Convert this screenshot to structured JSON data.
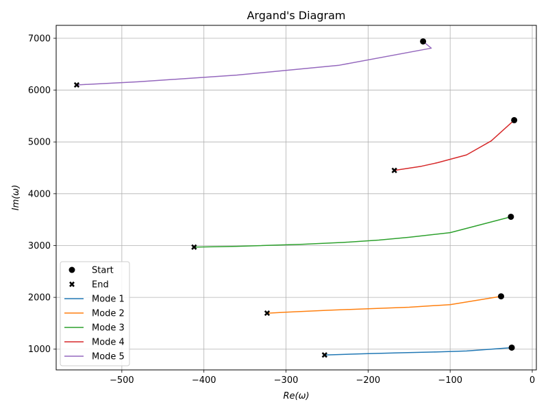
{
  "chart_data": {
    "type": "line",
    "title": "Argand's Diagram",
    "xlabel": "Re(ω)",
    "ylabel": "Im(ω)",
    "xlim": [
      -580,
      5
    ],
    "ylim": [
      600,
      7250
    ],
    "x_ticks": [
      -500,
      -400,
      -300,
      -200,
      -100,
      0
    ],
    "y_ticks": [
      1000,
      2000,
      3000,
      4000,
      5000,
      6000,
      7000
    ],
    "grid": true,
    "legend_location": "lower-left",
    "legend": [
      "Start",
      "End",
      "Mode 1",
      "Mode 2",
      "Mode 3",
      "Mode 4",
      "Mode 5"
    ],
    "colors": {
      "mode1": "#1f77b4",
      "mode2": "#ff7f0e",
      "mode3": "#2ca02c",
      "mode4": "#d62728",
      "mode5": "#9467bd",
      "grid": "#b0b0b0",
      "marker": "#000000"
    },
    "series": [
      {
        "name": "Mode 1",
        "x": [
          -25,
          -50,
          -80,
          -120,
          -160,
          -200,
          -253
        ],
        "y": [
          1030,
          1000,
          965,
          945,
          930,
          915,
          888
        ]
      },
      {
        "name": "Mode 2",
        "x": [
          -38,
          -100,
          -150,
          -200,
          -250,
          -300,
          -323
        ],
        "y": [
          2020,
          1860,
          1810,
          1780,
          1750,
          1715,
          1695
        ]
      },
      {
        "name": "Mode 3",
        "x": [
          -26,
          -100,
          -150,
          -187,
          -230,
          -280,
          -360,
          -412
        ],
        "y": [
          3555,
          3250,
          3160,
          3105,
          3060,
          3025,
          2985,
          2970
        ]
      },
      {
        "name": "Mode 4",
        "x": [
          -22,
          -50,
          -80,
          -115,
          -135,
          -168
        ],
        "y": [
          5420,
          5020,
          4750,
          4600,
          4530,
          4450
        ]
      },
      {
        "name": "Mode 5",
        "x": [
          -133,
          -123,
          -235,
          -360,
          -480,
          -555
        ],
        "y": [
          6940,
          6810,
          6480,
          6290,
          6160,
          6100
        ]
      }
    ]
  }
}
